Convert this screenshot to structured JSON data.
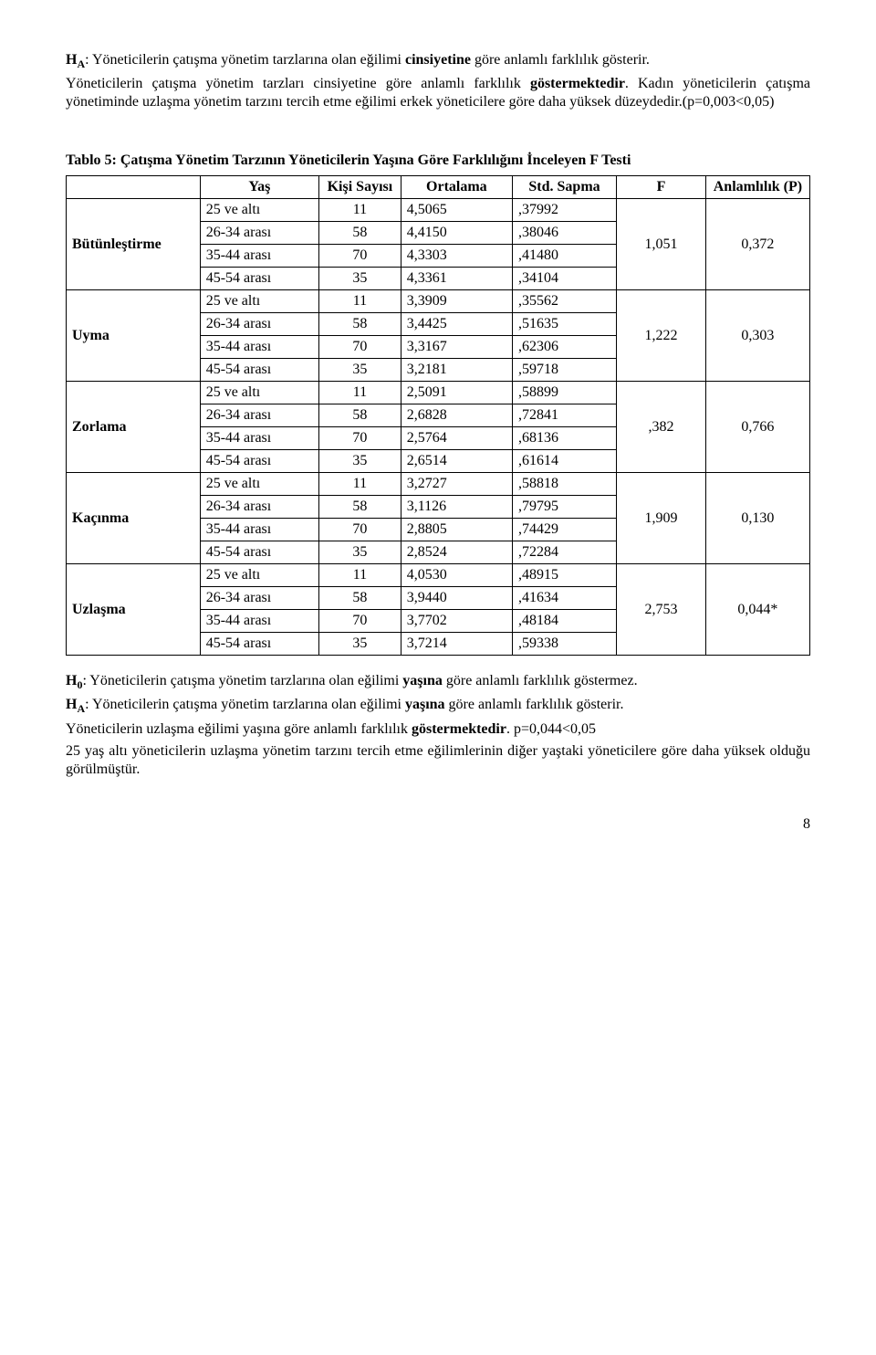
{
  "intro": {
    "p1_prefix": "H",
    "p1_sub": "A",
    "p1_rest": ": Yöneticilerin çatışma yönetim tarzlarına olan eğilimi ",
    "p1_bold": "cinsiyetine",
    "p1_tail": " göre anlamlı farklılık gösterir.",
    "p2_a": "Yöneticilerin çatışma yönetim tarzları cinsiyetine göre anlamlı farklılık ",
    "p2_b": "göstermektedir",
    "p2_c": ". Kadın yöneticilerin çatışma yönetiminde uzlaşma yönetim tarzını tercih etme eğilimi erkek yöneticilere göre daha yüksek düzeydedir.(p=0,003<0,05)"
  },
  "table": {
    "title": "Tablo 5: Çatışma Yönetim Tarzının Yöneticilerin Yaşına Göre Farklılığını İnceleyen F Testi",
    "headers": {
      "blank": "",
      "yas": "Yaş",
      "kisi": "Kişi Sayısı",
      "ort": "Ortalama",
      "std": "Std. Sapma",
      "f": "F",
      "p": "Anlamlılık (P)"
    },
    "groups": [
      {
        "name": "Bütünleştirme",
        "f": "1,051",
        "p": "0,372",
        "rows": [
          {
            "yas": "25 ve altı",
            "k": "11",
            "o": "4,5065",
            "s": ",37992"
          },
          {
            "yas": "26-34 arası",
            "k": "58",
            "o": "4,4150",
            "s": ",38046"
          },
          {
            "yas": "35-44 arası",
            "k": "70",
            "o": "4,3303",
            "s": ",41480"
          },
          {
            "yas": "45-54 arası",
            "k": "35",
            "o": "4,3361",
            "s": ",34104"
          }
        ]
      },
      {
        "name": "Uyma",
        "f": "1,222",
        "p": "0,303",
        "rows": [
          {
            "yas": "25 ve altı",
            "k": "11",
            "o": "3,3909",
            "s": ",35562"
          },
          {
            "yas": "26-34 arası",
            "k": "58",
            "o": "3,4425",
            "s": ",51635"
          },
          {
            "yas": "35-44 arası",
            "k": "70",
            "o": "3,3167",
            "s": ",62306"
          },
          {
            "yas": "45-54 arası",
            "k": "35",
            "o": "3,2181",
            "s": ",59718"
          }
        ]
      },
      {
        "name": "Zorlama",
        "f": ",382",
        "p": "0,766",
        "rows": [
          {
            "yas": "25 ve altı",
            "k": "11",
            "o": "2,5091",
            "s": ",58899"
          },
          {
            "yas": "26-34 arası",
            "k": "58",
            "o": "2,6828",
            "s": ",72841"
          },
          {
            "yas": "35-44 arası",
            "k": "70",
            "o": "2,5764",
            "s": ",68136"
          },
          {
            "yas": "45-54 arası",
            "k": "35",
            "o": "2,6514",
            "s": ",61614"
          }
        ]
      },
      {
        "name": "Kaçınma",
        "f": "1,909",
        "p": "0,130",
        "rows": [
          {
            "yas": "25 ve altı",
            "k": "11",
            "o": "3,2727",
            "s": ",58818"
          },
          {
            "yas": "26-34 arası",
            "k": "58",
            "o": "3,1126",
            "s": ",79795"
          },
          {
            "yas": "35-44 arası",
            "k": "70",
            "o": "2,8805",
            "s": ",74429"
          },
          {
            "yas": "45-54 arası",
            "k": "35",
            "o": "2,8524",
            "s": ",72284"
          }
        ]
      },
      {
        "name": "Uzlaşma",
        "f": "2,753",
        "p": "0,044*",
        "rows": [
          {
            "yas": "25 ve altı",
            "k": "11",
            "o": "4,0530",
            "s": ",48915"
          },
          {
            "yas": "26-34 arası",
            "k": "58",
            "o": "3,9440",
            "s": ",41634"
          },
          {
            "yas": "35-44 arası",
            "k": "70",
            "o": "3,7702",
            "s": ",48184"
          },
          {
            "yas": "45-54 arası",
            "k": "35",
            "o": "3,7214",
            "s": ",59338"
          }
        ]
      }
    ]
  },
  "outro": {
    "h0_prefix": "H",
    "h0_sub": "0",
    "h0_rest": ": Yöneticilerin çatışma yönetim tarzlarına olan eğilimi ",
    "h0_bold": "yaşına",
    "h0_tail": " göre anlamlı farklılık göstermez.",
    "ha_prefix": "H",
    "ha_sub": "A",
    "ha_rest": ": Yöneticilerin çatışma yönetim tarzlarına olan eğilimi ",
    "ha_bold": "yaşına",
    "ha_tail": " göre anlamlı farklılık gösterir.",
    "p3_a": "Yöneticilerin uzlaşma eğilimi yaşına göre anlamlı farklılık ",
    "p3_b": "göstermektedir",
    "p3_c": ". p=0,044<0,05",
    "p4": "25 yaş altı yöneticilerin uzlaşma yönetim tarzını tercih etme eğilimlerinin diğer yaştaki yöneticilere göre daha yüksek olduğu görülmüştür."
  },
  "page_number": "8"
}
